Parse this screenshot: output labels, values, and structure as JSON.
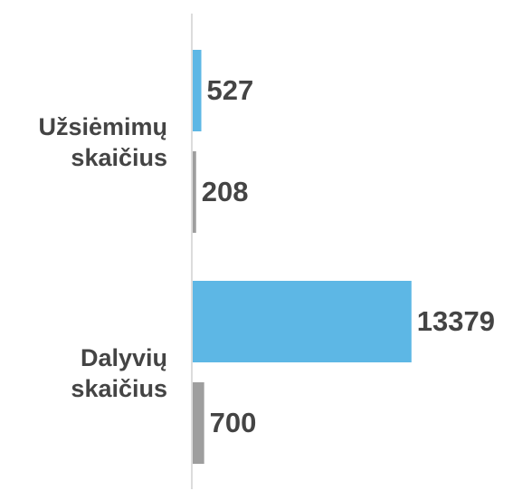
{
  "chart_data": {
    "type": "bar",
    "orientation": "horizontal",
    "categories": [
      "Užsiėmimų skaičius",
      "Dalyvių skaičius"
    ],
    "series": [
      {
        "color": "#5db7e5",
        "values": [
          527,
          13379
        ]
      },
      {
        "color": "#9e9e9e",
        "values": [
          208,
          700
        ]
      }
    ],
    "xlim": [
      0,
      14000
    ],
    "grid": false
  }
}
